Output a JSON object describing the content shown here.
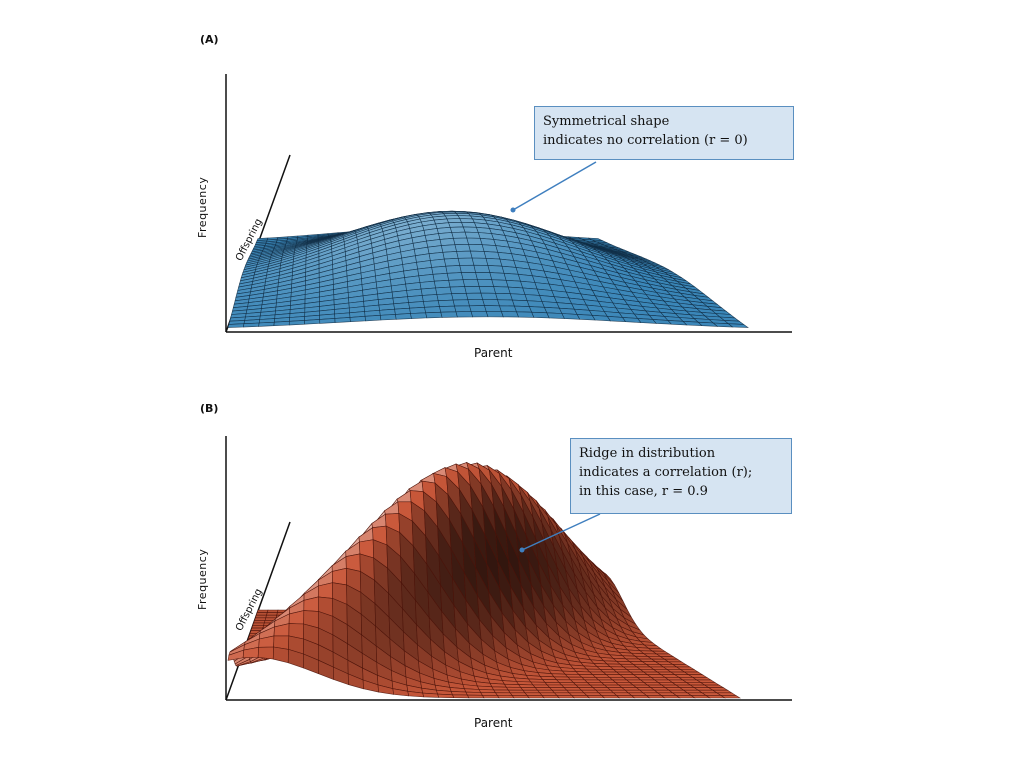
{
  "chart_data": [
    {
      "type": "surface",
      "panel_label": "(A)",
      "xlabel": "Parent",
      "ylabel": "Frequency",
      "zlabel": "Offspring",
      "correlation_r": 0,
      "annotation": [
        "Symmetrical shape",
        "indicates no correlation (r = 0)"
      ],
      "color": "#3a86b8",
      "mesh_color": "#0e2a42"
    },
    {
      "type": "surface",
      "panel_label": "(B)",
      "xlabel": "Parent",
      "ylabel": "Frequency",
      "zlabel": "Offspring",
      "correlation_r": 0.9,
      "annotation": [
        "Ridge in distribution",
        "indicates a correlation (r);",
        "in this case, r = 0.9"
      ],
      "color": "#c9583a",
      "mesh_color": "#4a1208"
    }
  ]
}
